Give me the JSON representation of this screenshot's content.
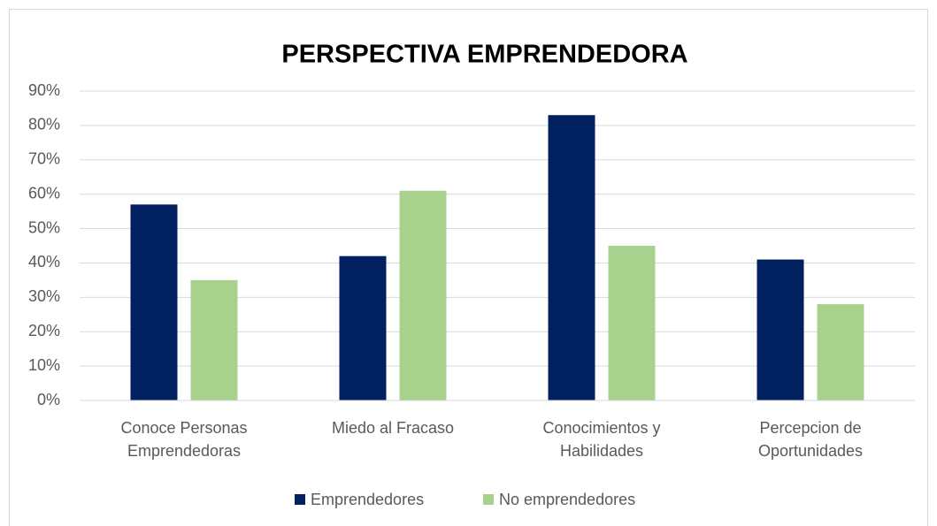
{
  "chart_data": {
    "type": "bar",
    "title": "PERSPECTIVA EMPRENDEDORA",
    "categories": [
      "Conoce Personas Emprendedoras",
      "Miedo al Fracaso",
      "Conocimientos y Habilidades",
      "Percepcion de Oportunidades"
    ],
    "series": [
      {
        "name": "Emprendedores",
        "color": "#002060",
        "values": [
          57,
          42,
          83,
          41
        ]
      },
      {
        "name": "No emprendedores",
        "color": "#a9d18e",
        "values": [
          35,
          61,
          45,
          28
        ]
      }
    ],
    "ylim": [
      0,
      90
    ],
    "yticks": [
      {
        "value": 0,
        "label": "0%"
      },
      {
        "value": 10,
        "label": "10%"
      },
      {
        "value": 20,
        "label": "20%"
      },
      {
        "value": 30,
        "label": "30%"
      },
      {
        "value": 40,
        "label": "40%"
      },
      {
        "value": 50,
        "label": "50%"
      },
      {
        "value": 60,
        "label": "60%"
      },
      {
        "value": 70,
        "label": "70%"
      },
      {
        "value": 80,
        "label": "80%"
      },
      {
        "value": 90,
        "label": "90%"
      }
    ],
    "grid": true,
    "legend": "bottom"
  }
}
